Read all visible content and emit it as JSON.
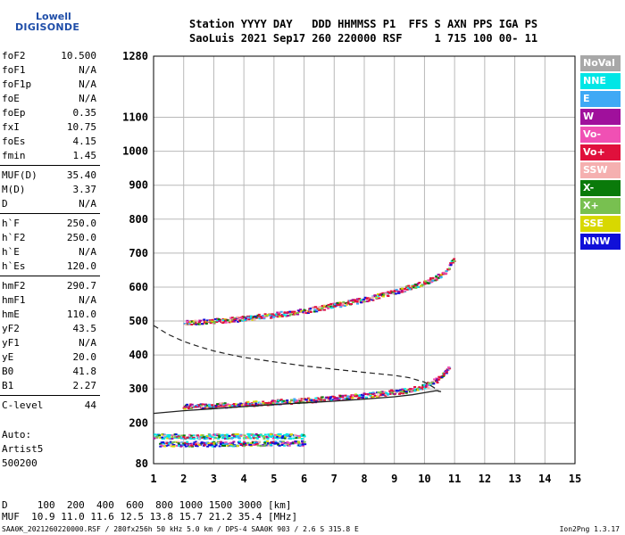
{
  "logo": {
    "line1": "Lowell",
    "line2": "DIGISONDE"
  },
  "header": {
    "line1": "Station YYYY DAY   DDD HHMMSS P1  FFS S AXN PPS IGA PS",
    "line2": "SaoLuis 2021 Sep17 260 220000 RSF     1 715 100 00- 11"
  },
  "params": [
    {
      "label": "foF2",
      "value": "10.500"
    },
    {
      "label": "foF1",
      "value": "N/A"
    },
    {
      "label": "foF1p",
      "value": "N/A"
    },
    {
      "label": "foE",
      "value": "N/A"
    },
    {
      "label": "foEp",
      "value": "0.35"
    },
    {
      "label": "fxI",
      "value": "10.75"
    },
    {
      "label": "foEs",
      "value": "4.15"
    },
    {
      "label": "fmin",
      "value": "1.45"
    },
    {
      "label": "MUF(D)",
      "value": "35.40"
    },
    {
      "label": "M(D)",
      "value": "3.37"
    },
    {
      "label": "D",
      "value": "N/A"
    },
    {
      "label": "h`F",
      "value": "250.0"
    },
    {
      "label": "h`F2",
      "value": "250.0"
    },
    {
      "label": "h`E",
      "value": "N/A"
    },
    {
      "label": "h`Es",
      "value": "120.0"
    },
    {
      "label": "hmF2",
      "value": "290.7"
    },
    {
      "label": "hmF1",
      "value": "N/A"
    },
    {
      "label": "hmE",
      "value": "110.0"
    },
    {
      "label": "yF2",
      "value": "43.5"
    },
    {
      "label": "yF1",
      "value": "N/A"
    },
    {
      "label": "yE",
      "value": "20.0"
    },
    {
      "label": "B0",
      "value": "41.8"
    },
    {
      "label": "B1",
      "value": "2.27"
    },
    {
      "label": "C-level",
      "value": "44"
    }
  ],
  "auto": {
    "line1": "Auto:",
    "line2": "Artist5",
    "line3": "500200"
  },
  "legend": [
    {
      "label": "NoVal",
      "color": "#a8a8a8"
    },
    {
      "label": "NNE",
      "color": "#00e6e6"
    },
    {
      "label": "E",
      "color": "#3fa9f5"
    },
    {
      "label": "W",
      "color": "#a0109c"
    },
    {
      "label": "Vo-",
      "color": "#f050b4"
    },
    {
      "label": "Vo+",
      "color": "#e0103c"
    },
    {
      "label": "SSW",
      "color": "#f5b0b0"
    },
    {
      "label": "X-",
      "color": "#0a7a0a"
    },
    {
      "label": "X+",
      "color": "#78c050"
    },
    {
      "label": "SSE",
      "color": "#d8d800"
    },
    {
      "label": "NNW",
      "color": "#1010d8"
    }
  ],
  "bottom": {
    "d_line": "D     100  200  400  600  800 1000 1500 3000 [km]",
    "muf_line": "MUF  10.9 11.0 11.6 12.5 13.8 15.7 21.2 35.4 [MHz]",
    "footer": "SAA0K_2021260220000.RSF / 280fx256h 50 kHz 5.0 km / DPS-4 SAA0K 903 / 2.6 S 315.8 E",
    "version": "Ion2Png 1.3.17"
  },
  "chart_data": {
    "type": "scatter",
    "xlim": [
      1,
      15
    ],
    "ylim": [
      80,
      1280
    ],
    "x_ticks": [
      1,
      2,
      3,
      4,
      5,
      6,
      7,
      8,
      9,
      10,
      11,
      12,
      13,
      14,
      15
    ],
    "y_ticks": [
      80,
      200,
      300,
      400,
      500,
      600,
      700,
      800,
      900,
      1000,
      1100,
      1280
    ],
    "grid": true,
    "solid_profile": [
      [
        1,
        228
      ],
      [
        2,
        236
      ],
      [
        3,
        242
      ],
      [
        4,
        248
      ],
      [
        5,
        254
      ],
      [
        6,
        259
      ],
      [
        7,
        264
      ],
      [
        8,
        270
      ],
      [
        9,
        277
      ],
      [
        9.6,
        283
      ],
      [
        10,
        289
      ],
      [
        10.4,
        295
      ],
      [
        10.55,
        292
      ]
    ],
    "dashed_profile": [
      [
        1,
        487
      ],
      [
        1.5,
        460
      ],
      [
        2,
        440
      ],
      [
        2.5,
        425
      ],
      [
        3,
        412
      ],
      [
        3.5,
        402
      ],
      [
        4,
        393
      ],
      [
        5,
        380
      ],
      [
        6,
        368
      ],
      [
        7,
        358
      ],
      [
        8,
        349
      ],
      [
        9,
        340
      ],
      [
        9.5,
        333
      ],
      [
        10,
        320
      ],
      [
        10.3,
        305
      ],
      [
        10.5,
        292
      ]
    ],
    "traces": [
      {
        "name": "O trace",
        "color": "#e0103c",
        "points": [
          [
            2,
            250
          ],
          [
            3,
            252
          ],
          [
            4,
            257
          ],
          [
            5,
            263
          ],
          [
            6,
            268
          ],
          [
            7,
            275
          ],
          [
            8,
            283
          ],
          [
            9,
            293
          ],
          [
            9.5,
            300
          ],
          [
            10,
            310
          ],
          [
            10.3,
            325
          ],
          [
            10.6,
            345
          ],
          [
            10.8,
            370
          ]
        ]
      },
      {
        "name": "O 2nd hop",
        "color": "#e0103c",
        "points": [
          [
            2,
            498
          ],
          [
            3,
            502
          ],
          [
            4,
            510
          ],
          [
            5,
            520
          ],
          [
            6,
            532
          ],
          [
            7,
            548
          ],
          [
            8,
            565
          ],
          [
            9,
            588
          ],
          [
            10,
            615
          ],
          [
            10.6,
            640
          ],
          [
            11,
            690
          ]
        ]
      },
      {
        "name": "Es",
        "color": "#00e6e6",
        "points": [
          [
            1,
            162
          ],
          [
            2,
            162
          ],
          [
            3,
            162
          ],
          [
            4,
            163
          ],
          [
            5,
            163
          ],
          [
            6,
            163
          ]
        ]
      },
      {
        "name": "Es low",
        "color": "#1010d8",
        "points": [
          [
            1.2,
            140
          ],
          [
            2,
            140
          ],
          [
            3,
            140
          ],
          [
            4,
            141
          ],
          [
            5,
            142
          ],
          [
            6,
            142
          ]
        ]
      }
    ]
  }
}
